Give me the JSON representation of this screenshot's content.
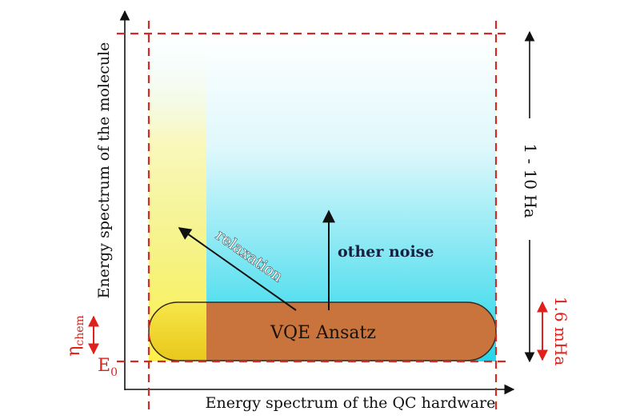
{
  "axes": {
    "x_label": "Energy spectrum of the QC hardware",
    "y_label": "Energy spectrum of the molecule"
  },
  "labels": {
    "ansatz": "VQE Ansatz",
    "relaxation": "relaxation",
    "other_noise": "other noise",
    "eta_symbol": "η",
    "eta_subscript": "chem",
    "e_symbol": "E",
    "e_subscript": "0",
    "range_large": "1 - 10 Ha",
    "range_small": "1.6 mHa"
  },
  "colors": {
    "guide_dashed": "#d42a22",
    "accent_red": "#e0201b",
    "ansatz_fill": "#c8743c",
    "ansatz_stroke": "#3a2a1c",
    "noise_gradient_top": "#ffffff",
    "noise_gradient_bottom": "#25d6ea",
    "relaxation_band": "#fff04a",
    "arrow": "#111111",
    "other_noise_text": "#16213f"
  }
}
